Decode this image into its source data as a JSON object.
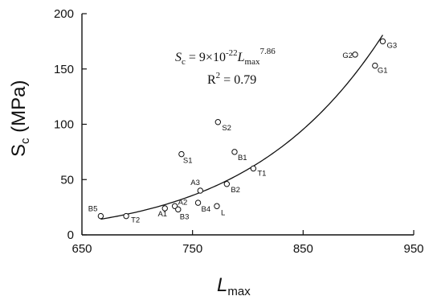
{
  "chart_data": {
    "type": "scatter",
    "xlabel": {
      "main": "L",
      "sub": "max"
    },
    "ylabel": {
      "main": "S",
      "sub": "c",
      "unit": " (MPa)"
    },
    "xlim": [
      650,
      950
    ],
    "ylim": [
      0,
      200
    ],
    "x_ticks": [
      "650",
      "750",
      "850",
      "950"
    ],
    "y_ticks": [
      "0",
      "50",
      "100",
      "150",
      "200"
    ],
    "points": [
      {
        "label": "B5",
        "x": 667,
        "y": 17
      },
      {
        "label": "T2",
        "x": 690,
        "y": 17
      },
      {
        "label": "A1",
        "x": 725,
        "y": 24
      },
      {
        "label": "A2",
        "x": 734,
        "y": 26
      },
      {
        "label": "B3",
        "x": 737,
        "y": 23
      },
      {
        "label": "S1",
        "x": 740,
        "y": 73
      },
      {
        "label": "A3",
        "x": 757,
        "y": 40
      },
      {
        "label": "B4",
        "x": 755,
        "y": 29
      },
      {
        "label": "L",
        "x": 772,
        "y": 26
      },
      {
        "label": "S2",
        "x": 773,
        "y": 102
      },
      {
        "label": "B2",
        "x": 781,
        "y": 46
      },
      {
        "label": "B1",
        "x": 788,
        "y": 75
      },
      {
        "label": "T1",
        "x": 805,
        "y": 60
      },
      {
        "label": "G2",
        "x": 897,
        "y": 163
      },
      {
        "label": "G1",
        "x": 915,
        "y": 153
      },
      {
        "label": "G3",
        "x": 922,
        "y": 175
      }
    ],
    "fit": {
      "model": "power",
      "coefficient": 9e-22,
      "exponent": 7.86,
      "x_range": [
        667,
        922
      ]
    },
    "annotation": {
      "equation": {
        "lhs_main": "S",
        "lhs_sub": "c",
        "eq_prefix": " = 9×10",
        "exp1": "-22",
        "var_main": "L",
        "var_sub": "max",
        "exp2": "7.86"
      },
      "r2": {
        "prefix": "R",
        "sup": "2",
        "suffix": " = 0.79"
      }
    }
  }
}
